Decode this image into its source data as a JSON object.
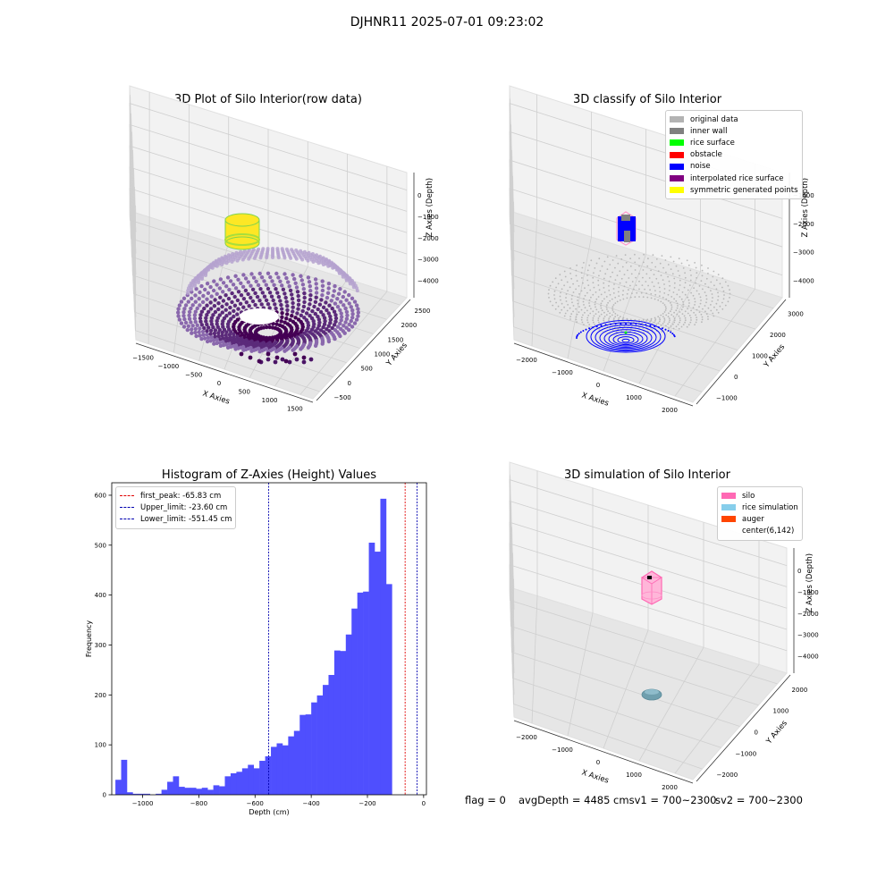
{
  "suptitle": "DJHNR11 2025-07-01 09:23:02",
  "chart_data": [
    {
      "type": "scatter3d",
      "title": "3D Plot of Silo Interior(row data)",
      "xlabel": "X Axies",
      "ylabel": "Y Axies",
      "zlabel": "Z Axies (Depth)",
      "x_ticks": [
        "−1500",
        "−1000",
        "−500",
        "0",
        "500",
        "1000",
        "1500"
      ],
      "y_ticks": [
        "−500",
        "0",
        "500",
        "1000",
        "1500",
        "2000",
        "2500"
      ],
      "z_ticks": [
        "0",
        "−1000",
        "−2000",
        "−3000",
        "−4000"
      ],
      "colormap": [
        "#440154",
        "#b5a2cf",
        "#7fd34e",
        "#fde725"
      ]
    },
    {
      "type": "scatter3d",
      "title": "3D classify of Silo Interior",
      "xlabel": "X Axies",
      "ylabel": "Y Axies",
      "zlabel": "Z Axies (Depth)",
      "x_ticks": [
        "−2000",
        "−1000",
        "0",
        "1000",
        "2000"
      ],
      "y_ticks": [
        "−1000",
        "0",
        "1000",
        "2000",
        "3000"
      ],
      "z_ticks": [
        "−1000",
        "−2000",
        "−3000",
        "−4000"
      ],
      "legend": [
        {
          "label": "original data",
          "color": "#b3b3b3"
        },
        {
          "label": "inner wall",
          "color": "#808080"
        },
        {
          "label": "rice surface",
          "color": "#00ff00"
        },
        {
          "label": "obstacle",
          "color": "#ff0000"
        },
        {
          "label": "noise",
          "color": "#0000ff"
        },
        {
          "label": "interpolated rice surface",
          "color": "#800080"
        },
        {
          "label": "symmetric generated points",
          "color": "#ffff00"
        }
      ]
    },
    {
      "type": "bar",
      "title": "Histogram of Z-Axies (Height) Values",
      "xlabel": "Depth (cm)",
      "ylabel": "Frequency",
      "xlim": [
        -1110,
        10
      ],
      "ylim": [
        0,
        625
      ],
      "x_ticks": [
        -1000,
        -800,
        -600,
        -400,
        -200,
        0
      ],
      "x_tick_labels": [
        "−1000",
        "−800",
        "−600",
        "−400",
        "−200",
        "0"
      ],
      "y_ticks": [
        0,
        100,
        200,
        300,
        400,
        500,
        600
      ],
      "bar_color": "#4f4ffe",
      "bin_start": -1097,
      "bin_width": 20.5,
      "values": [
        30,
        70,
        5,
        2,
        2,
        2,
        0,
        2,
        10,
        26,
        37,
        16,
        14,
        14,
        12,
        14,
        10,
        19,
        17,
        37,
        43,
        46,
        53,
        60,
        53,
        68,
        77,
        96,
        103,
        99,
        117,
        128,
        160,
        161,
        185,
        199,
        220,
        240,
        289,
        288,
        321,
        373,
        405,
        407,
        505,
        487,
        593,
        422
      ],
      "vlines": [
        {
          "label": "first_peak: -65.83 cm",
          "x": -65.83,
          "color": "#e00000"
        },
        {
          "label": "Upper_limit: -23.60 cm",
          "x": -23.6,
          "color": "#0000b0"
        },
        {
          "label": "Lower_limit: -551.45 cm",
          "x": -551.45,
          "color": "#0000b0"
        }
      ]
    },
    {
      "type": "scatter3d",
      "title": "3D simulation of Silo Interior",
      "xlabel": "X Axies",
      "ylabel": "Y Axies",
      "zlabel": "Z Axies (Depth)",
      "x_ticks": [
        "−2000",
        "−1000",
        "0",
        "1000",
        "2000"
      ],
      "y_ticks": [
        "−2000",
        "−1000",
        "0",
        "1000",
        "2000"
      ],
      "z_ticks": [
        "0",
        "−1000",
        "−2000",
        "−3000",
        "−4000"
      ],
      "legend": [
        {
          "label": "silo",
          "color": "#ff69b4"
        },
        {
          "label": "rice simulation",
          "color": "#87ceeb"
        },
        {
          "label": "auger",
          "color": "#ff4500"
        },
        {
          "label": "center(6,142)",
          "color": ""
        }
      ]
    }
  ],
  "status": {
    "flag": "flag = 0",
    "avg": "avgDepth = 4485 cmsv1 = 700~2300",
    "sv2": "sv2 = 700~2300"
  }
}
